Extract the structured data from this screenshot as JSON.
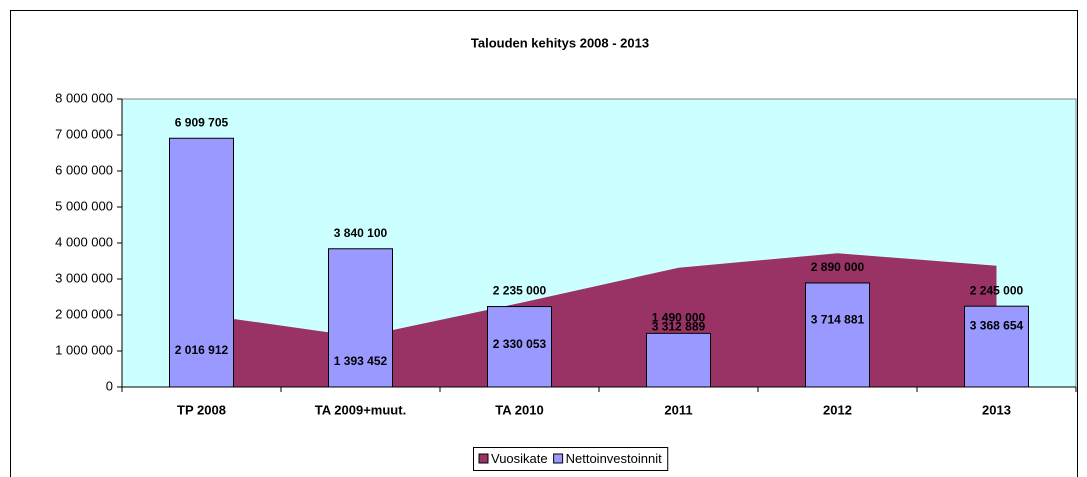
{
  "chart_data": {
    "type": "bar",
    "title": "Talouden kehitys 2008 - 2013",
    "categories": [
      "TP  2008",
      "TA 2009+muut.",
      "TA 2010",
      "2011",
      "2012",
      "2013"
    ],
    "series": [
      {
        "name": "Vuosikate",
        "type": "area",
        "color": "#993366",
        "values": [
          2016912,
          1393452,
          2330053,
          3312889,
          3714881,
          3368654
        ],
        "value_labels": [
          "2 016 912",
          "1 393 452",
          "2 330 053",
          "3 312 889",
          "3 714 881",
          "3 368 654"
        ]
      },
      {
        "name": "Nettoinvestoinnit",
        "type": "bar",
        "color": "#9999ff",
        "values": [
          6909705,
          3840100,
          2235000,
          1490000,
          2890000,
          2245000
        ],
        "value_labels": [
          "6 909 705",
          "3 840 100",
          "2 235 000",
          "1 490 000",
          "2 890 000",
          "2 245 000"
        ]
      }
    ],
    "ylim": [
      0,
      8000000
    ],
    "yticks": [
      0,
      {
        "value": 1000000,
        "label": "1 000 000"
      },
      {
        "value": 2000000,
        "label": "2 000 000"
      },
      {
        "value": 3000000,
        "label": "3 000 000"
      },
      {
        "value": 4000000,
        "label": "4 000 000"
      },
      {
        "value": 5000000,
        "label": "5 000 000"
      },
      {
        "value": 6000000,
        "label": "6 000 000"
      },
      {
        "value": 7000000,
        "label": "7 000 000"
      },
      {
        "value": 8000000,
        "label": "8 000 000"
      }
    ],
    "legend": "bottom"
  }
}
